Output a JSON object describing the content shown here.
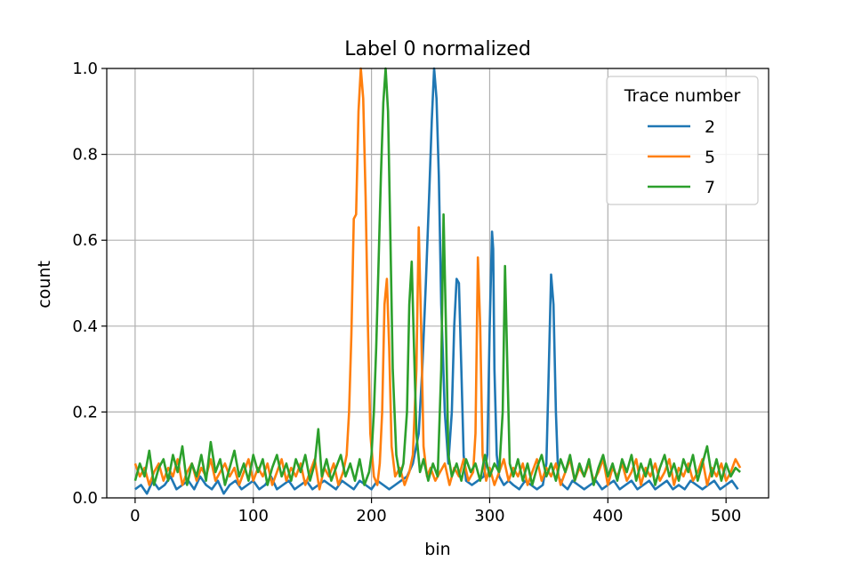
{
  "chart_data": {
    "type": "line",
    "title": "Label 0 normalized",
    "xlabel": "bin",
    "ylabel": "count",
    "xlim": [
      -24,
      536
    ],
    "ylim": [
      0,
      1.0
    ],
    "xticks": [
      0,
      100,
      200,
      300,
      400,
      500
    ],
    "yticks": [
      0.0,
      0.2,
      0.4,
      0.6,
      0.8,
      1.0
    ],
    "xtick_labels": [
      "0",
      "100",
      "200",
      "300",
      "400",
      "500"
    ],
    "ytick_labels": [
      "0.0",
      "0.2",
      "0.4",
      "0.6",
      "0.8",
      "1.0"
    ],
    "grid": true,
    "legend": {
      "title": "Trace number",
      "placement": "top-right"
    },
    "series": [
      {
        "name": "2",
        "color": "#1f77b4",
        "x": [
          0,
          5,
          10,
          15,
          20,
          25,
          30,
          35,
          40,
          45,
          50,
          55,
          60,
          65,
          70,
          75,
          80,
          85,
          90,
          95,
          100,
          105,
          110,
          115,
          120,
          125,
          130,
          135,
          140,
          145,
          150,
          155,
          160,
          165,
          170,
          175,
          180,
          185,
          190,
          195,
          200,
          205,
          210,
          215,
          220,
          225,
          230,
          235,
          240,
          243,
          246,
          249,
          251,
          253,
          255,
          257,
          259,
          262,
          265,
          268,
          270,
          272,
          274,
          276,
          278,
          280,
          285,
          290,
          295,
          298,
          300,
          302,
          303,
          304,
          306,
          308,
          312,
          316,
          320,
          325,
          330,
          335,
          340,
          345,
          348,
          350,
          352,
          354,
          356,
          358,
          362,
          366,
          370,
          375,
          380,
          385,
          390,
          395,
          400,
          405,
          410,
          415,
          420,
          425,
          430,
          435,
          440,
          445,
          450,
          455,
          460,
          465,
          470,
          475,
          480,
          485,
          490,
          495,
          500,
          505,
          510
        ],
        "y": [
          0.02,
          0.03,
          0.01,
          0.04,
          0.02,
          0.03,
          0.05,
          0.02,
          0.03,
          0.04,
          0.02,
          0.05,
          0.03,
          0.02,
          0.04,
          0.01,
          0.03,
          0.04,
          0.02,
          0.03,
          0.04,
          0.02,
          0.03,
          0.05,
          0.02,
          0.03,
          0.04,
          0.02,
          0.03,
          0.04,
          0.02,
          0.03,
          0.04,
          0.03,
          0.02,
          0.04,
          0.03,
          0.02,
          0.04,
          0.03,
          0.02,
          0.04,
          0.03,
          0.02,
          0.03,
          0.04,
          0.05,
          0.08,
          0.15,
          0.3,
          0.5,
          0.72,
          0.88,
          1.0,
          0.93,
          0.75,
          0.45,
          0.2,
          0.08,
          0.2,
          0.4,
          0.51,
          0.5,
          0.3,
          0.1,
          0.04,
          0.03,
          0.04,
          0.05,
          0.1,
          0.4,
          0.62,
          0.58,
          0.3,
          0.1,
          0.05,
          0.03,
          0.04,
          0.03,
          0.02,
          0.04,
          0.03,
          0.02,
          0.03,
          0.08,
          0.3,
          0.52,
          0.45,
          0.2,
          0.05,
          0.03,
          0.02,
          0.04,
          0.03,
          0.02,
          0.03,
          0.04,
          0.02,
          0.03,
          0.04,
          0.02,
          0.03,
          0.04,
          0.02,
          0.03,
          0.04,
          0.02,
          0.03,
          0.04,
          0.02,
          0.03,
          0.02,
          0.04,
          0.03,
          0.02,
          0.03,
          0.04,
          0.02,
          0.03,
          0.04,
          0.02
        ]
      },
      {
        "name": "5",
        "color": "#ff7f0e",
        "x": [
          0,
          4,
          8,
          12,
          16,
          20,
          24,
          28,
          32,
          36,
          40,
          44,
          48,
          52,
          56,
          60,
          64,
          68,
          72,
          76,
          80,
          84,
          88,
          92,
          96,
          100,
          104,
          108,
          112,
          116,
          120,
          124,
          128,
          132,
          136,
          140,
          144,
          148,
          152,
          156,
          160,
          164,
          168,
          172,
          176,
          179,
          181,
          183,
          185,
          187,
          189,
          191,
          193,
          195,
          197,
          199,
          202,
          205,
          207,
          209,
          211,
          213,
          215,
          217,
          220,
          224,
          228,
          232,
          235,
          238,
          240,
          242,
          244,
          247,
          250,
          254,
          258,
          262,
          266,
          270,
          274,
          278,
          282,
          286,
          288,
          290,
          292,
          294,
          297,
          300,
          304,
          308,
          312,
          316,
          320,
          324,
          328,
          332,
          336,
          340,
          344,
          348,
          352,
          356,
          360,
          364,
          368,
          372,
          376,
          380,
          384,
          388,
          392,
          396,
          400,
          404,
          408,
          412,
          416,
          420,
          424,
          428,
          432,
          436,
          440,
          444,
          448,
          452,
          456,
          460,
          464,
          468,
          472,
          476,
          480,
          484,
          488,
          492,
          496,
          500,
          504,
          508,
          512
        ],
        "y": [
          0.08,
          0.05,
          0.07,
          0.03,
          0.06,
          0.08,
          0.04,
          0.07,
          0.05,
          0.09,
          0.03,
          0.06,
          0.08,
          0.04,
          0.07,
          0.05,
          0.09,
          0.04,
          0.06,
          0.08,
          0.05,
          0.07,
          0.03,
          0.06,
          0.09,
          0.04,
          0.07,
          0.05,
          0.08,
          0.03,
          0.06,
          0.09,
          0.04,
          0.07,
          0.05,
          0.08,
          0.03,
          0.06,
          0.09,
          0.02,
          0.07,
          0.05,
          0.08,
          0.03,
          0.06,
          0.1,
          0.2,
          0.38,
          0.65,
          0.66,
          0.9,
          1.0,
          0.93,
          0.7,
          0.4,
          0.15,
          0.05,
          0.03,
          0.08,
          0.2,
          0.45,
          0.51,
          0.35,
          0.12,
          0.05,
          0.07,
          0.03,
          0.06,
          0.1,
          0.3,
          0.63,
          0.4,
          0.12,
          0.05,
          0.07,
          0.04,
          0.06,
          0.08,
          0.03,
          0.07,
          0.05,
          0.09,
          0.04,
          0.06,
          0.15,
          0.56,
          0.4,
          0.1,
          0.04,
          0.07,
          0.03,
          0.06,
          0.09,
          0.04,
          0.07,
          0.05,
          0.08,
          0.03,
          0.06,
          0.09,
          0.04,
          0.07,
          0.05,
          0.08,
          0.03,
          0.06,
          0.09,
          0.04,
          0.07,
          0.05,
          0.08,
          0.04,
          0.06,
          0.09,
          0.03,
          0.07,
          0.05,
          0.08,
          0.04,
          0.06,
          0.09,
          0.03,
          0.07,
          0.05,
          0.08,
          0.04,
          0.06,
          0.09,
          0.03,
          0.07,
          0.05,
          0.08,
          0.04,
          0.06,
          0.09,
          0.03,
          0.07,
          0.05,
          0.08,
          0.04,
          0.06,
          0.09,
          0.07
        ]
      },
      {
        "name": "7",
        "color": "#2ca02c",
        "x": [
          0,
          4,
          8,
          12,
          16,
          20,
          24,
          28,
          32,
          36,
          40,
          44,
          48,
          52,
          56,
          60,
          64,
          68,
          72,
          76,
          80,
          84,
          88,
          92,
          96,
          100,
          104,
          108,
          112,
          116,
          120,
          124,
          128,
          132,
          136,
          140,
          144,
          148,
          152,
          155,
          158,
          162,
          166,
          170,
          174,
          178,
          182,
          186,
          190,
          194,
          198,
          200,
          202,
          204,
          206,
          208,
          210,
          212,
          214,
          216,
          218,
          221,
          224,
          227,
          230,
          232,
          234,
          236,
          238,
          241,
          244,
          248,
          252,
          256,
          259,
          261,
          263,
          265,
          268,
          272,
          276,
          280,
          284,
          288,
          292,
          296,
          300,
          304,
          308,
          311,
          313,
          315,
          317,
          320,
          324,
          328,
          332,
          336,
          340,
          344,
          348,
          352,
          356,
          360,
          364,
          368,
          372,
          376,
          380,
          384,
          388,
          392,
          396,
          400,
          404,
          408,
          412,
          416,
          420,
          424,
          428,
          432,
          436,
          440,
          444,
          448,
          452,
          456,
          460,
          464,
          468,
          472,
          476,
          480,
          484,
          488,
          492,
          496,
          500,
          504,
          508,
          512
        ],
        "y": [
          0.04,
          0.08,
          0.05,
          0.11,
          0.03,
          0.07,
          0.09,
          0.04,
          0.1,
          0.06,
          0.12,
          0.03,
          0.08,
          0.05,
          0.1,
          0.04,
          0.13,
          0.06,
          0.09,
          0.03,
          0.07,
          0.11,
          0.05,
          0.08,
          0.04,
          0.1,
          0.06,
          0.09,
          0.03,
          0.07,
          0.1,
          0.05,
          0.08,
          0.04,
          0.09,
          0.06,
          0.1,
          0.04,
          0.08,
          0.16,
          0.05,
          0.09,
          0.04,
          0.07,
          0.1,
          0.05,
          0.08,
          0.04,
          0.09,
          0.03,
          0.06,
          0.1,
          0.2,
          0.35,
          0.55,
          0.75,
          0.92,
          1.0,
          0.9,
          0.6,
          0.3,
          0.1,
          0.05,
          0.08,
          0.2,
          0.45,
          0.55,
          0.35,
          0.15,
          0.06,
          0.09,
          0.04,
          0.08,
          0.05,
          0.3,
          0.66,
          0.4,
          0.1,
          0.05,
          0.08,
          0.04,
          0.09,
          0.06,
          0.08,
          0.04,
          0.1,
          0.05,
          0.08,
          0.06,
          0.2,
          0.54,
          0.3,
          0.08,
          0.05,
          0.09,
          0.04,
          0.08,
          0.03,
          0.07,
          0.1,
          0.05,
          0.08,
          0.04,
          0.09,
          0.06,
          0.1,
          0.04,
          0.08,
          0.05,
          0.09,
          0.03,
          0.07,
          0.1,
          0.05,
          0.08,
          0.04,
          0.09,
          0.06,
          0.1,
          0.04,
          0.08,
          0.05,
          0.09,
          0.03,
          0.07,
          0.1,
          0.05,
          0.08,
          0.04,
          0.09,
          0.06,
          0.1,
          0.04,
          0.08,
          0.12,
          0.05,
          0.09,
          0.04,
          0.08,
          0.05,
          0.07,
          0.06
        ]
      }
    ]
  }
}
